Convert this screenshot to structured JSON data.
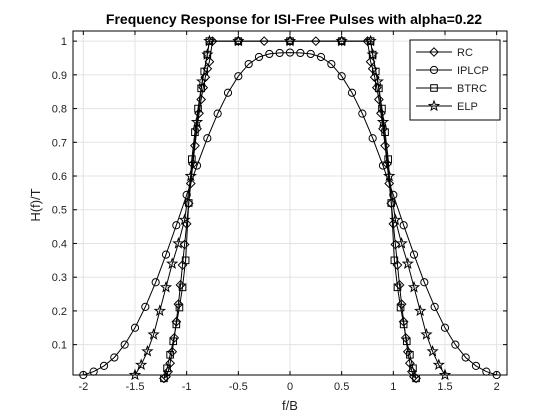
{
  "chart_data": {
    "type": "line",
    "title": "Frequency Response for ISI-Free Pulses with alpha=0.22",
    "xlabel": "f/B",
    "ylabel": "H(f)/T",
    "xlim": [
      -2.1,
      2.1
    ],
    "ylim": [
      0.01,
      1.03
    ],
    "x_ticks": [
      "-2",
      "-1.5",
      "-1",
      "-0.5",
      "0",
      "0.5",
      "1",
      "1.5",
      "2"
    ],
    "x_tick_values": [
      -2,
      -1.5,
      -1,
      -0.5,
      0,
      0.5,
      1,
      1.5,
      2
    ],
    "y_ticks": [
      "0.1",
      "0.2",
      "0.3",
      "0.4",
      "0.5",
      "0.6",
      "0.7",
      "0.8",
      "0.9",
      "1"
    ],
    "y_tick_values": [
      0.1,
      0.2,
      0.3,
      0.4,
      0.5,
      0.6,
      0.7,
      0.8,
      0.9,
      1
    ],
    "grid": true,
    "legend_position": "top-right",
    "line_color": "#000000",
    "series": [
      {
        "name": "RC",
        "marker": "diamond",
        "x": [
          -1.22,
          -1.2,
          -1.18,
          -1.16,
          -1.14,
          -1.12,
          -1.1,
          -1.08,
          -1.06,
          -1.04,
          -1.02,
          -1.0,
          -0.98,
          -0.96,
          -0.94,
          -0.92,
          -0.9,
          -0.88,
          -0.86,
          -0.84,
          -0.82,
          -0.8,
          -0.78,
          -0.75,
          -0.5,
          -0.25,
          0,
          0.25,
          0.5,
          0.75,
          0.78,
          0.8,
          0.82,
          0.84,
          0.86,
          0.88,
          0.9,
          0.92,
          0.94,
          0.96,
          0.98,
          1.0,
          1.02,
          1.04,
          1.06,
          1.08,
          1.1,
          1.12,
          1.14,
          1.16,
          1.18,
          1.2,
          1.22
        ],
        "y": [
          0.0,
          0.005,
          0.02,
          0.045,
          0.079,
          0.12,
          0.168,
          0.22,
          0.277,
          0.336,
          0.397,
          0.458,
          0.519,
          0.578,
          0.636,
          0.69,
          0.74,
          0.786,
          0.827,
          0.862,
          0.893,
          0.918,
          0.939,
          1.0,
          1.0,
          1.0,
          1.0,
          1.0,
          1.0,
          1.0,
          0.939,
          0.918,
          0.893,
          0.862,
          0.827,
          0.786,
          0.74,
          0.69,
          0.636,
          0.578,
          0.519,
          0.458,
          0.397,
          0.336,
          0.277,
          0.22,
          0.168,
          0.12,
          0.079,
          0.045,
          0.02,
          0.005,
          0.0
        ]
      },
      {
        "name": "IPLCP",
        "marker": "circle",
        "x": [
          -2.0,
          -1.9,
          -1.8,
          -1.7,
          -1.6,
          -1.5,
          -1.4,
          -1.3,
          -1.2,
          -1.1,
          -1.0,
          -0.9,
          -0.8,
          -0.7,
          -0.6,
          -0.5,
          -0.4,
          -0.3,
          -0.2,
          -0.1,
          0.0,
          0.1,
          0.2,
          0.3,
          0.4,
          0.5,
          0.6,
          0.7,
          0.8,
          0.9,
          1.0,
          1.1,
          1.2,
          1.3,
          1.4,
          1.5,
          1.6,
          1.7,
          1.8,
          1.9,
          2.0
        ],
        "y": [
          0.01,
          0.02,
          0.037,
          0.062,
          0.1,
          0.15,
          0.212,
          0.285,
          0.367,
          0.454,
          0.544,
          0.631,
          0.712,
          0.785,
          0.847,
          0.896,
          0.932,
          0.953,
          0.962,
          0.965,
          0.966,
          0.965,
          0.962,
          0.953,
          0.932,
          0.896,
          0.847,
          0.785,
          0.712,
          0.631,
          0.544,
          0.454,
          0.367,
          0.285,
          0.212,
          0.15,
          0.1,
          0.062,
          0.037,
          0.02,
          0.01
        ]
      },
      {
        "name": "BTRC",
        "marker": "square",
        "x": [
          -1.22,
          -1.19,
          -1.16,
          -1.13,
          -1.1,
          -1.07,
          -1.04,
          -1.01,
          -0.98,
          -0.95,
          -0.92,
          -0.89,
          -0.86,
          -0.83,
          -0.8,
          -0.78,
          -0.5,
          0.0,
          0.5,
          0.78,
          0.8,
          0.83,
          0.86,
          0.89,
          0.92,
          0.95,
          0.98,
          1.01,
          1.04,
          1.07,
          1.1,
          1.13,
          1.16,
          1.19,
          1.22
        ],
        "y": [
          0.0,
          0.03,
          0.07,
          0.11,
          0.16,
          0.21,
          0.27,
          0.35,
          0.52,
          0.65,
          0.73,
          0.8,
          0.86,
          0.91,
          0.96,
          1.0,
          1.0,
          1.0,
          1.0,
          1.0,
          0.96,
          0.91,
          0.86,
          0.8,
          0.73,
          0.65,
          0.52,
          0.35,
          0.27,
          0.21,
          0.16,
          0.11,
          0.07,
          0.03,
          0.0
        ]
      },
      {
        "name": "ELP",
        "marker": "star",
        "x": [
          -1.5,
          -1.44,
          -1.38,
          -1.32,
          -1.26,
          -1.2,
          -1.14,
          -1.08,
          -1.02,
          -0.96,
          -0.9,
          -0.85,
          -0.8,
          -0.78,
          -0.5,
          0.0,
          0.5,
          0.78,
          0.8,
          0.85,
          0.9,
          0.96,
          1.02,
          1.08,
          1.14,
          1.2,
          1.26,
          1.32,
          1.38,
          1.44,
          1.5
        ],
        "y": [
          0.01,
          0.04,
          0.08,
          0.13,
          0.2,
          0.27,
          0.34,
          0.4,
          0.47,
          0.6,
          0.76,
          0.88,
          0.96,
          1.0,
          1.0,
          1.0,
          1.0,
          1.0,
          0.96,
          0.88,
          0.76,
          0.6,
          0.47,
          0.4,
          0.34,
          0.27,
          0.2,
          0.13,
          0.08,
          0.04,
          0.01
        ]
      }
    ]
  }
}
